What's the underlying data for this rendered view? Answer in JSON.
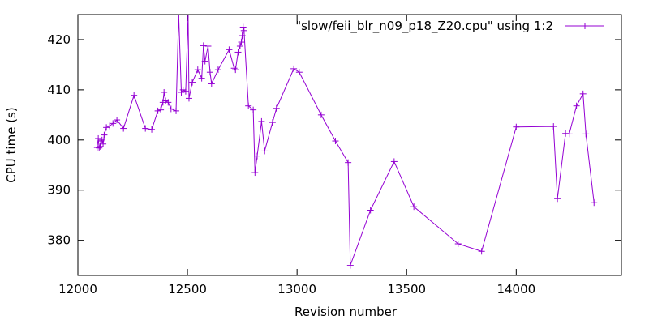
{
  "chart_data": {
    "type": "line",
    "title": "",
    "xlabel": "Revision number",
    "ylabel": "CPU time (s)",
    "xlim": [
      12000,
      14480
    ],
    "ylim": [
      373,
      425
    ],
    "x_ticks": [
      12000,
      12500,
      13000,
      13500,
      14000
    ],
    "y_ticks": [
      380,
      390,
      400,
      410,
      420
    ],
    "grid": false,
    "legend_position": "top-right",
    "series": [
      {
        "name": "\"slow/feii_blr_n09_p18_Z20.cpu\" using 1:2",
        "color": "#9400d3",
        "marker": "plus",
        "points": [
          [
            12088,
            398.5
          ],
          [
            12093,
            400.3
          ],
          [
            12097,
            398.4
          ],
          [
            12101,
            398.7
          ],
          [
            12105,
            399.8
          ],
          [
            12110,
            400.0
          ],
          [
            12115,
            399.2
          ],
          [
            12120,
            401.0
          ],
          [
            12130,
            402.5
          ],
          [
            12145,
            402.8
          ],
          [
            12160,
            403.3
          ],
          [
            12178,
            404.0
          ],
          [
            12208,
            402.3
          ],
          [
            12256,
            408.9
          ],
          [
            12308,
            402.3
          ],
          [
            12337,
            402.1
          ],
          [
            12365,
            405.8
          ],
          [
            12378,
            406.0
          ],
          [
            12388,
            407.5
          ],
          [
            12393,
            409.5
          ],
          [
            12400,
            407.8
          ],
          [
            12412,
            407.5
          ],
          [
            12425,
            406.2
          ],
          [
            12448,
            405.8
          ],
          [
            12460,
            425.0
          ],
          [
            12472,
            409.5
          ],
          [
            12480,
            410.0
          ],
          [
            12492,
            409.7
          ],
          [
            12503,
            425.0
          ],
          [
            12507,
            408.3
          ],
          [
            12522,
            411.5
          ],
          [
            12547,
            414.0
          ],
          [
            12565,
            412.3
          ],
          [
            12573,
            418.8
          ],
          [
            12580,
            415.7
          ],
          [
            12594,
            418.7
          ],
          [
            12603,
            413.5
          ],
          [
            12610,
            411.2
          ],
          [
            12640,
            414.0
          ],
          [
            12690,
            418.0
          ],
          [
            12713,
            414.3
          ],
          [
            12719,
            414.0
          ],
          [
            12731,
            417.5
          ],
          [
            12740,
            418.7
          ],
          [
            12746,
            419.5
          ],
          [
            12750,
            420.8
          ],
          [
            12754,
            422.5
          ],
          [
            12758,
            421.8
          ],
          [
            12778,
            406.8
          ],
          [
            12800,
            406.0
          ],
          [
            12808,
            393.5
          ],
          [
            12818,
            396.8
          ],
          [
            12838,
            403.7
          ],
          [
            12852,
            397.8
          ],
          [
            12888,
            403.5
          ],
          [
            12906,
            406.3
          ],
          [
            12985,
            414.2
          ],
          [
            13010,
            413.5
          ],
          [
            13110,
            405.0
          ],
          [
            13175,
            399.8
          ],
          [
            13233,
            395.5
          ],
          [
            13243,
            375.0
          ],
          [
            13335,
            386.0
          ],
          [
            13443,
            395.7
          ],
          [
            13533,
            386.7
          ],
          [
            13735,
            379.3
          ],
          [
            13842,
            377.8
          ],
          [
            14000,
            402.6
          ],
          [
            14170,
            402.7
          ],
          [
            14188,
            388.3
          ],
          [
            14225,
            401.3
          ],
          [
            14242,
            401.2
          ],
          [
            14275,
            406.8
          ],
          [
            14305,
            409.2
          ],
          [
            14318,
            401.2
          ],
          [
            14355,
            387.5
          ]
        ]
      }
    ]
  }
}
